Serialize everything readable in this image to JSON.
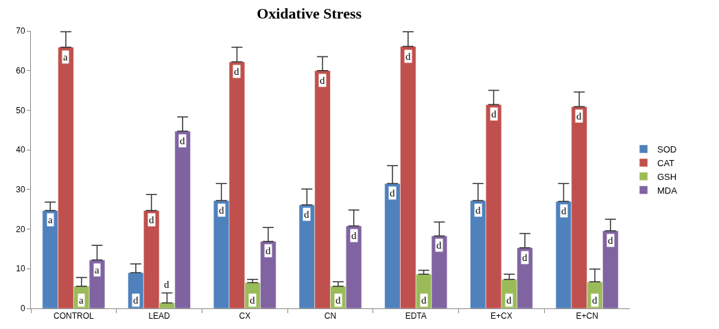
{
  "chart_data": {
    "type": "bar",
    "title": "Oxidative Stress",
    "categories": [
      "CONTROL",
      "LEAD",
      "CX",
      "CN",
      "EDTA",
      "E+CX",
      "E+CN"
    ],
    "series": [
      {
        "name": "SOD",
        "color": "#4f81bd",
        "values": [
          24.7,
          9.0,
          27.2,
          26.1,
          31.5,
          27.2,
          27.0
        ],
        "errors": [
          [
            24.7,
            26.8
          ],
          [
            9.0,
            11.2
          ],
          [
            27.2,
            31.5
          ],
          [
            26.1,
            30.1
          ],
          [
            31.5,
            36.0
          ],
          [
            27.2,
            31.5
          ],
          [
            27.0,
            31.5
          ]
        ],
        "value_labels": [
          "a",
          "d",
          "d",
          "d",
          "d",
          "d",
          "d"
        ]
      },
      {
        "name": "CAT",
        "color": "#c0504d",
        "values": [
          65.9,
          24.7,
          62.2,
          60.0,
          66.1,
          51.4,
          50.9
        ],
        "errors": [
          [
            65.9,
            69.8
          ],
          [
            24.7,
            28.7
          ],
          [
            62.2,
            65.9
          ],
          [
            60.0,
            63.5
          ],
          [
            66.1,
            69.8
          ],
          [
            51.4,
            55.0
          ],
          [
            50.9,
            54.6
          ]
        ],
        "value_labels": [
          "a",
          "d",
          "d",
          "d",
          "d",
          "d",
          "d"
        ]
      },
      {
        "name": "GSH",
        "color": "#9bbb59",
        "values": [
          5.6,
          1.4,
          6.5,
          5.6,
          8.6,
          7.3,
          6.7
        ],
        "errors": [
          [
            5.6,
            7.8
          ],
          [
            1.4,
            3.9
          ],
          [
            6.5,
            7.3
          ],
          [
            5.6,
            6.7
          ],
          [
            8.6,
            9.6
          ],
          [
            7.3,
            8.6
          ],
          [
            6.7,
            9.9
          ]
        ],
        "value_labels": [
          "a",
          "d",
          "d",
          "d",
          "d",
          "d",
          "d"
        ]
      },
      {
        "name": "MDA",
        "color": "#8064a2",
        "values": [
          12.2,
          44.7,
          16.9,
          20.8,
          18.3,
          15.3,
          19.6
        ],
        "errors": [
          [
            12.2,
            15.9
          ],
          [
            44.7,
            48.3
          ],
          [
            16.9,
            20.4
          ],
          [
            20.8,
            24.8
          ],
          [
            18.3,
            21.8
          ],
          [
            15.3,
            18.9
          ],
          [
            19.6,
            22.5
          ]
        ],
        "value_labels": [
          "a",
          "d",
          "d",
          "d",
          "d",
          "d",
          "d"
        ]
      }
    ],
    "ylim": [
      0,
      70
    ],
    "yticks": [
      0,
      10,
      20,
      30,
      40,
      50,
      60,
      70
    ],
    "legend": "right"
  }
}
